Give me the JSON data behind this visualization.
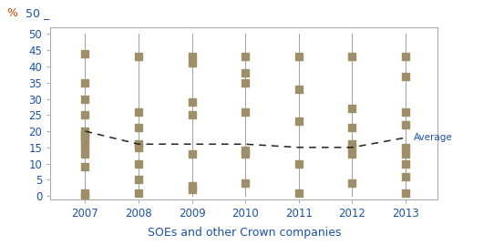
{
  "years": [
    2007,
    2008,
    2009,
    2010,
    2011,
    2012,
    2013
  ],
  "data_points": {
    "2007": [
      0,
      1,
      9,
      13,
      15,
      17,
      18,
      19,
      20,
      25,
      30,
      35,
      44
    ],
    "2008": [
      1,
      5,
      10,
      15,
      16,
      21,
      26,
      43
    ],
    "2009": [
      2,
      3,
      13,
      25,
      29,
      41,
      43
    ],
    "2010": [
      4,
      13,
      14,
      26,
      35,
      38,
      43
    ],
    "2011": [
      1,
      10,
      23,
      33,
      43
    ],
    "2012": [
      4,
      13,
      15,
      16,
      21,
      27,
      43
    ],
    "2013": [
      1,
      6,
      10,
      13,
      15,
      22,
      26,
      37,
      43
    ]
  },
  "averages": [
    20,
    16,
    16,
    16,
    15,
    15,
    18
  ],
  "marker_color": "#9e8f68",
  "line_color": "#8ab08a",
  "avg_line_color": "#222222",
  "xlabel": "SOEs and other Crown companies",
  "ylim": [
    -1,
    52
  ],
  "yticks": [
    0,
    5,
    10,
    15,
    20,
    25,
    30,
    35,
    40,
    45,
    50
  ],
  "avg_label": "Average",
  "avg_label_color": "#1a52a8",
  "xlabel_color": "#1a52a8",
  "tick_color": "#1a52a8",
  "pct_color": "#cc4400",
  "background_color": "#ffffff",
  "marker_size": 5.5,
  "line_width": 0.7,
  "border_color": "#aaaaaa"
}
